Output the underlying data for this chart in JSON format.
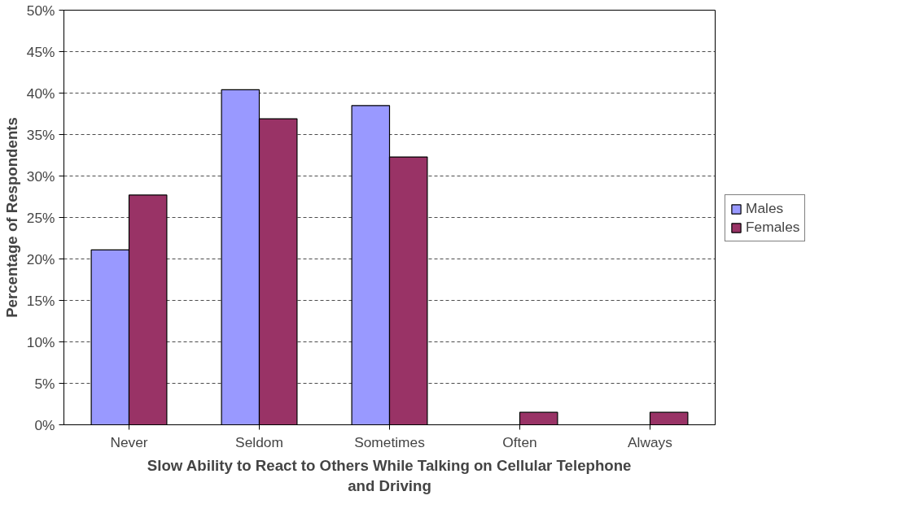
{
  "chart_data": {
    "type": "bar",
    "xlabel": "Slow Ability to React to Others While Talking on Cellular Telephone and Driving",
    "ylabel": "Percentage of Respondents",
    "categories": [
      "Never",
      "Seldom",
      "Sometimes",
      "Often",
      "Always"
    ],
    "series": [
      {
        "name": "Males",
        "color": "#9999ff",
        "values": [
          21.1,
          40.4,
          38.5,
          0,
          0
        ]
      },
      {
        "name": "Females",
        "color": "#993366",
        "values": [
          27.7,
          36.9,
          32.3,
          1.5,
          1.5
        ]
      }
    ],
    "ylim": [
      0,
      50
    ],
    "yticks": [
      {
        "value": 0,
        "label": "0%"
      },
      {
        "value": 5,
        "label": "5%"
      },
      {
        "value": 10,
        "label": "10%"
      },
      {
        "value": 15,
        "label": "15%"
      },
      {
        "value": 20,
        "label": "20%"
      },
      {
        "value": 25,
        "label": "25%"
      },
      {
        "value": 30,
        "label": "30%"
      },
      {
        "value": 35,
        "label": "35%"
      },
      {
        "value": 40,
        "label": "40%"
      },
      {
        "value": 45,
        "label": "45%"
      },
      {
        "value": 50,
        "label": "50%"
      }
    ],
    "grid": "y",
    "legend": "right"
  }
}
